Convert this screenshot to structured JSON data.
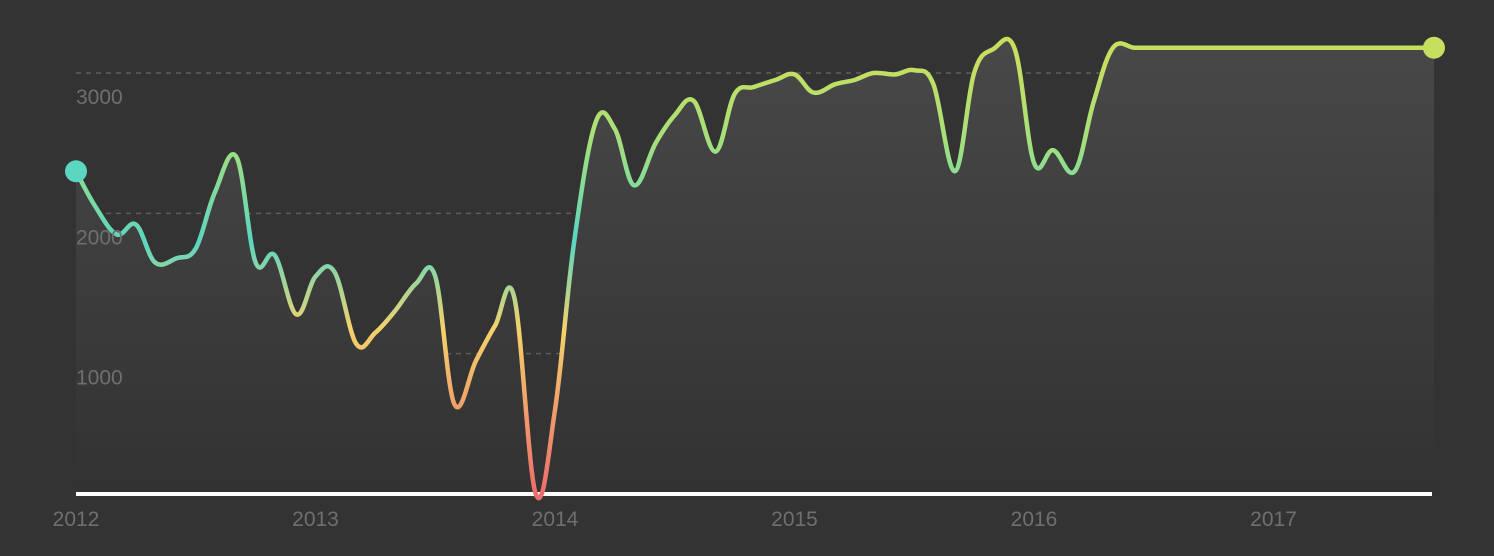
{
  "chart_data": {
    "type": "line",
    "title": "",
    "xlabel": "",
    "ylabel": "",
    "x_tick_labels": [
      "2012",
      "2013",
      "2014",
      "2015",
      "2016",
      "2017"
    ],
    "y_tick_labels": [
      "1000",
      "2000",
      "3000"
    ],
    "ylim": [
      0,
      3000
    ],
    "xlim": [
      2012.0,
      2017.67
    ],
    "grid": true,
    "grid_style": "dashed",
    "colors": {
      "background": "#333333",
      "area_top": "#474747",
      "grid": "#5e5e5e",
      "baseline": "#ffffff",
      "low": "#ee6d6d",
      "mid": "#f4d36b",
      "mid_high": "#a6e07a",
      "high": "#5bd6c0",
      "start_marker": "#5bd6c0",
      "end_marker": "#c7df5f"
    },
    "series": [
      {
        "x": [
          2012.0,
          2012.08,
          2012.17,
          2012.25,
          2012.33,
          2012.42,
          2012.5,
          2012.58,
          2012.67,
          2012.75,
          2012.83,
          2012.92,
          2013.0,
          2013.08,
          2013.17,
          2013.25,
          2013.33,
          2013.42,
          2013.5,
          2013.58,
          2013.67,
          2013.75,
          2013.83,
          2013.92,
          2014.0,
          2014.08,
          2014.17,
          2014.25,
          2014.33,
          2014.42,
          2014.5,
          2014.58,
          2014.67,
          2014.75,
          2014.83,
          2014.92,
          2015.0,
          2015.08,
          2015.17,
          2015.25,
          2015.33,
          2015.42,
          2015.5,
          2015.58,
          2015.67,
          2015.75,
          2015.83,
          2015.92,
          2016.0,
          2016.08,
          2016.17,
          2016.25,
          2016.33,
          2016.42,
          2016.5,
          2016.58,
          2016.67,
          2016.75,
          2016.83,
          2016.92,
          2017.0,
          2017.08,
          2017.17,
          2017.25,
          2017.33,
          2017.42,
          2017.5,
          2017.58,
          2017.67
        ],
        "y": [
          2300,
          2050,
          1850,
          1920,
          1650,
          1680,
          1750,
          2150,
          2400,
          1650,
          1700,
          1280,
          1550,
          1580,
          1070,
          1150,
          1300,
          1500,
          1550,
          640,
          950,
          1200,
          1400,
          0,
          600,
          1800,
          2650,
          2600,
          2200,
          2500,
          2700,
          2800,
          2440,
          2850,
          2900,
          2950,
          2990,
          2860,
          2920,
          2950,
          3000,
          2990,
          3020,
          2920,
          2300,
          3000,
          3170,
          3170,
          2360,
          2450,
          2300,
          2800,
          3180,
          3180,
          3180,
          3180,
          3180,
          3180,
          3180,
          3180,
          3180,
          3180,
          3180,
          3180,
          3180,
          3180,
          3180,
          3180,
          3180
        ]
      }
    ]
  }
}
